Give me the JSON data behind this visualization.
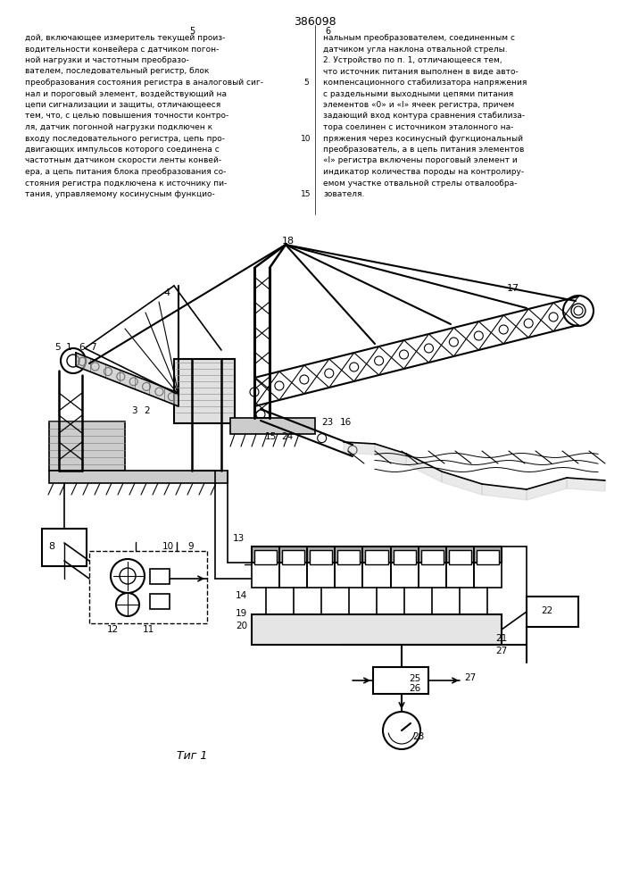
{
  "title": "386098",
  "fig_label": "Τиг 1",
  "background": "#ffffff",
  "text_color": "#000000",
  "line_color": "#000000",
  "page_width": 7.07,
  "page_height": 10.0,
  "left_text": [
    "дой, включающее измеритель текущей произ-",
    "водительности конвейера с датчиком погон-",
    "ной нагрузки и частотным преобразо-",
    "вателем, последовательный регистр, блок",
    "преобразования состояния регистра в аналоговый сиг-",
    "нал и пороговый элемент, воздействующий на",
    "цепи сигнализации и защиты, отличающееся",
    "тем, что, с целью повышения точности контро-",
    "ля, датчик погонной нагрузки подключен к",
    "входу последовательного регистра, цепь про-",
    "двигающих импульсов которого соединена с",
    "частотным датчиком скорости ленты конвей-",
    "ера, а цепь питания блока преобразования со-",
    "стояния регистра подключена к источнику пи-",
    "тания, управляемому косинусным функцио-"
  ],
  "right_text": [
    "нальным преобразователем, соединенным с",
    "датчиком угла наклона отвальной стрелы.",
    "2. Устройство по п. 1, отличающееся тем,",
    "что источник питания выполнен в виде авто-",
    "компенсационного стабилизатора напряжения",
    "с раздельными выходными цепями питания",
    "элементов «0» и «I» ячеек регистра, причем",
    "задающий вход контура сравнения стабилиза-",
    "тора соелинен с источником эталонного на-",
    "пряжения через косинусный фугкциональный",
    "преобразователь, а в цепь питания элементов",
    "«I» регистра включены пороговый элемент и",
    "индикатор количества породы на контролиру-",
    "емом участке отвальной стрелы отвалообра-",
    "зователя."
  ]
}
